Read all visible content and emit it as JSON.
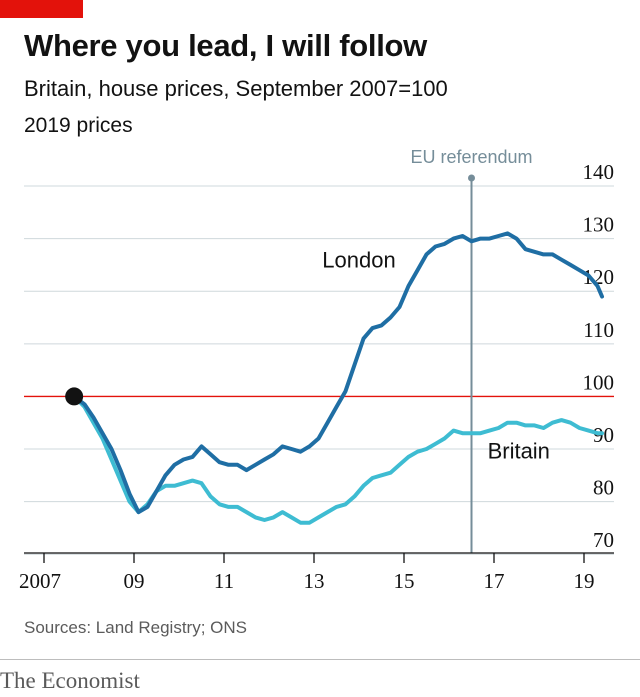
{
  "title": "Where you lead, I will follow",
  "subtitle": "Britain, house prices, September 2007=100",
  "unit": "2019 prices",
  "source": "Sources: Land Registry; ONS",
  "brand": "The Economist",
  "colors": {
    "accent_red": "#e3120b",
    "london": "#1f6ea4",
    "britain": "#3ebcd2",
    "grid": "#cfd8dc",
    "baseline": "#e3120b",
    "annotation": "#758d99"
  },
  "chart_data": {
    "type": "line",
    "title": "Where you lead, I will follow",
    "subtitle": "Britain, house prices, September 2007=100",
    "xlabel": "",
    "ylabel": "2019 prices",
    "x_ticks": [
      2007,
      2009,
      2011,
      2013,
      2015,
      2017,
      2019
    ],
    "x_tick_labels": [
      "2007",
      "09",
      "11",
      "13",
      "15",
      "17",
      "19"
    ],
    "y_ticks": [
      70,
      80,
      90,
      100,
      110,
      120,
      130,
      140
    ],
    "y_tick_labels": [
      "70",
      "80",
      "90",
      "100",
      "110",
      "120",
      "130",
      "140"
    ],
    "xlim": [
      2006.6,
      2019.8
    ],
    "ylim": [
      67,
      144
    ],
    "y_axis_side": "right",
    "grid": true,
    "reference_line": {
      "y": 100
    },
    "annotation": {
      "label": "EU referendum",
      "x": 2016.5
    },
    "start_marker": {
      "x": 2007.67,
      "y": 100
    },
    "series": [
      {
        "name": "London",
        "label_position": {
          "x": 2014.0,
          "y": 124.5
        },
        "x": [
          2007.67,
          2007.9,
          2008.1,
          2008.3,
          2008.5,
          2008.7,
          2008.9,
          2009.1,
          2009.3,
          2009.5,
          2009.7,
          2009.9,
          2010.1,
          2010.3,
          2010.5,
          2010.7,
          2010.9,
          2011.1,
          2011.3,
          2011.5,
          2011.7,
          2011.9,
          2012.1,
          2012.3,
          2012.5,
          2012.7,
          2012.9,
          2013.1,
          2013.3,
          2013.5,
          2013.7,
          2013.9,
          2014.1,
          2014.3,
          2014.5,
          2014.7,
          2014.9,
          2015.1,
          2015.3,
          2015.5,
          2015.7,
          2015.9,
          2016.1,
          2016.3,
          2016.5,
          2016.7,
          2016.9,
          2017.1,
          2017.3,
          2017.5,
          2017.7,
          2017.9,
          2018.1,
          2018.3,
          2018.5,
          2018.7,
          2018.9,
          2019.1,
          2019.3,
          2019.4
        ],
        "y": [
          100,
          98.5,
          96,
          93,
          90,
          86,
          81.5,
          78,
          79,
          82,
          85,
          87,
          88,
          88.5,
          90.5,
          89,
          87.5,
          87,
          87,
          86,
          87,
          88,
          89,
          90.5,
          90,
          89.5,
          90.5,
          92,
          95,
          98,
          101,
          106,
          111,
          113,
          113.5,
          115,
          117,
          121,
          124,
          127,
          128.5,
          129,
          130,
          130.5,
          129.5,
          130,
          130,
          130.5,
          131,
          130,
          128,
          127.5,
          127,
          127,
          126,
          125,
          124,
          123,
          121,
          119
        ]
      },
      {
        "name": "Britain",
        "label_position": {
          "x": 2017.55,
          "y": 88.2
        },
        "x": [
          2007.67,
          2007.9,
          2008.1,
          2008.3,
          2008.5,
          2008.7,
          2008.9,
          2009.1,
          2009.3,
          2009.5,
          2009.7,
          2009.9,
          2010.1,
          2010.3,
          2010.5,
          2010.7,
          2010.9,
          2011.1,
          2011.3,
          2011.5,
          2011.7,
          2011.9,
          2012.1,
          2012.3,
          2012.5,
          2012.7,
          2012.9,
          2013.1,
          2013.3,
          2013.5,
          2013.7,
          2013.9,
          2014.1,
          2014.3,
          2014.5,
          2014.7,
          2014.9,
          2015.1,
          2015.3,
          2015.5,
          2015.7,
          2015.9,
          2016.1,
          2016.3,
          2016.5,
          2016.7,
          2016.9,
          2017.1,
          2017.3,
          2017.5,
          2017.7,
          2017.9,
          2018.1,
          2018.3,
          2018.5,
          2018.7,
          2018.9,
          2019.1,
          2019.3,
          2019.4
        ],
        "y": [
          100,
          98,
          95,
          92,
          88,
          84,
          80,
          78,
          79.5,
          82,
          83,
          83,
          83.5,
          84,
          83.5,
          81,
          79.5,
          79,
          79,
          78,
          77,
          76.5,
          77,
          78,
          77,
          76,
          76,
          77,
          78,
          79,
          79.5,
          81,
          83,
          84.5,
          85,
          85.5,
          87,
          88.5,
          89.5,
          90,
          91,
          92,
          93.5,
          93,
          93,
          93,
          93.5,
          94,
          95,
          95,
          94.5,
          94.5,
          94,
          95,
          95.5,
          95,
          94,
          93.5,
          93,
          93
        ]
      }
    ]
  }
}
